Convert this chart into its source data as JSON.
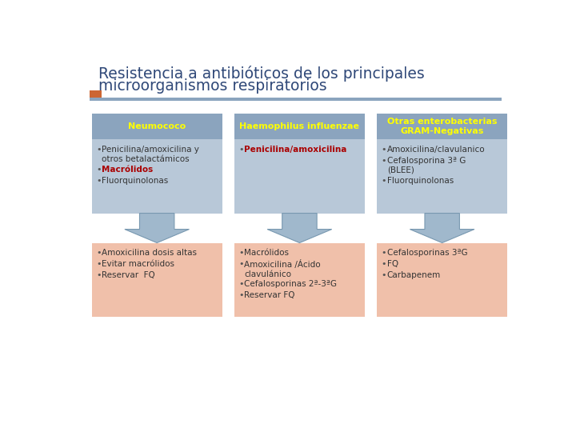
{
  "title_line1": "Resistencia a antibióticos de los principales",
  "title_line2": "microorganismos respiratorios",
  "title_color": "#2f4878",
  "bg_color": "#ffffff",
  "header_bg": "#8ba4be",
  "header_text_color": "#ffff00",
  "top_box_bg": "#b8c8d8",
  "bottom_box_bg": "#f0c0aa",
  "accent_bar_color": "#cc6633",
  "blue_line_color": "#8ba4be",
  "arrow_fill": "#a0b8cc",
  "arrow_edge": "#7898b0",
  "columns": [
    {
      "header": "Neumococo",
      "top_bullets": [
        {
          "text": "Penicilina/amoxicilina y\notros betalactámicos",
          "color": "#333333",
          "bold": false
        },
        {
          "text": "Macrólidos",
          "color": "#aa0000",
          "bold": true
        },
        {
          "text": "Fluorquinolonas",
          "color": "#333333",
          "bold": false
        }
      ],
      "bottom_bullets": [
        {
          "text": "Amoxicilina dosis altas",
          "color": "#333333"
        },
        {
          "text": "Evitar macrólidos",
          "color": "#333333"
        },
        {
          "text": "Reservar  FQ",
          "color": "#333333"
        }
      ]
    },
    {
      "header": "Haemophilus influenzae",
      "top_bullets": [
        {
          "text": "Penicilina/amoxicilina",
          "color": "#aa0000",
          "bold": true
        }
      ],
      "bottom_bullets": [
        {
          "text": "Macrólidos",
          "color": "#333333"
        },
        {
          "text": "Amoxicilina /Ácido\nclavulánico",
          "color": "#333333"
        },
        {
          "text": "Cefalosporinas 2ª-3ªG",
          "color": "#333333"
        },
        {
          "text": "Reservar FQ",
          "color": "#333333"
        }
      ]
    },
    {
      "header": "Otras enterobacterias\nGRAM-Negativas",
      "top_bullets": [
        {
          "text": "Amoxicilina/clavulanico",
          "color": "#333333",
          "bold": false
        },
        {
          "text": "Cefalosporina 3ª G\n(BLEE)",
          "color": "#333333",
          "bold": false
        },
        {
          "text": "Fluorquinolonas",
          "color": "#333333",
          "bold": false
        }
      ],
      "bottom_bullets": [
        {
          "text": "Cefalosporinas 3ªG",
          "color": "#333333"
        },
        {
          "text": "FQ",
          "color": "#333333"
        },
        {
          "text": "Carbapenem",
          "color": "#333333"
        }
      ]
    }
  ]
}
